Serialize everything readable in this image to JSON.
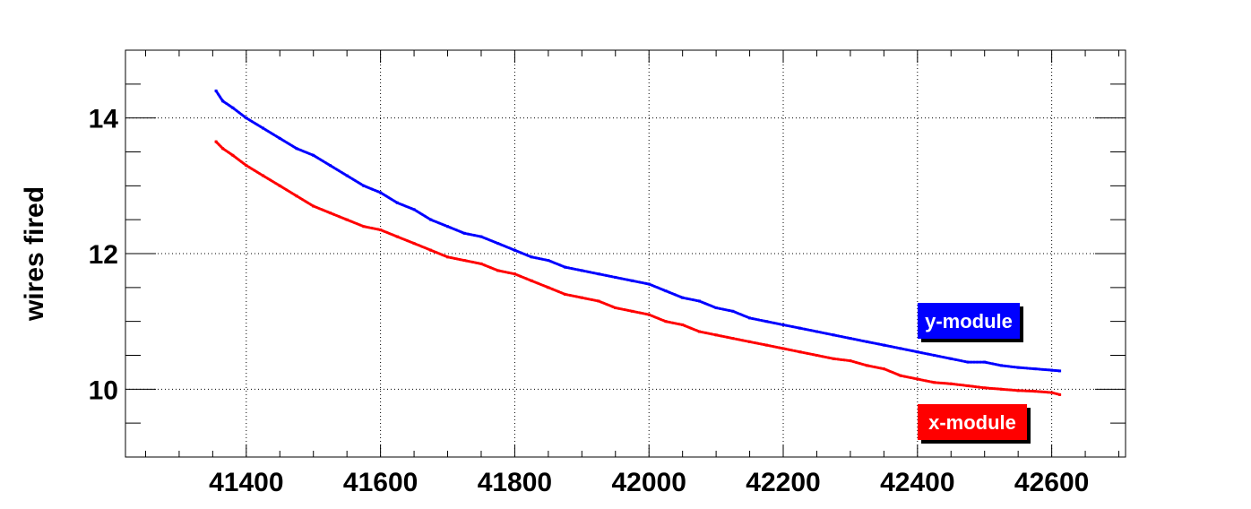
{
  "chart_data": {
    "type": "scatter",
    "title": "",
    "xlabel": "",
    "ylabel": "wires fired",
    "xlim": [
      41220,
      42710
    ],
    "ylim": [
      9.0,
      15.0
    ],
    "grid": true,
    "x_ticks": [
      "41400",
      "41600",
      "41800",
      "42000",
      "42200",
      "42400",
      "42600"
    ],
    "y_ticks": [
      "10",
      "12",
      "14"
    ],
    "legend_placement": "right",
    "series": [
      {
        "name": "y-module",
        "color": "#0000ff",
        "points": [
          [
            41355,
            14.4
          ],
          [
            41365,
            14.25
          ],
          [
            41380,
            14.15
          ],
          [
            41400,
            14.0
          ],
          [
            41425,
            13.85
          ],
          [
            41450,
            13.7
          ],
          [
            41475,
            13.55
          ],
          [
            41500,
            13.45
          ],
          [
            41525,
            13.3
          ],
          [
            41550,
            13.15
          ],
          [
            41575,
            13.0
          ],
          [
            41600,
            12.9
          ],
          [
            41625,
            12.75
          ],
          [
            41650,
            12.65
          ],
          [
            41675,
            12.5
          ],
          [
            41700,
            12.4
          ],
          [
            41725,
            12.3
          ],
          [
            41750,
            12.25
          ],
          [
            41775,
            12.15
          ],
          [
            41800,
            12.05
          ],
          [
            41825,
            11.95
          ],
          [
            41850,
            11.9
          ],
          [
            41875,
            11.8
          ],
          [
            41900,
            11.75
          ],
          [
            41925,
            11.7
          ],
          [
            41950,
            11.65
          ],
          [
            41975,
            11.6
          ],
          [
            42000,
            11.55
          ],
          [
            42025,
            11.45
          ],
          [
            42050,
            11.35
          ],
          [
            42075,
            11.3
          ],
          [
            42100,
            11.2
          ],
          [
            42125,
            11.15
          ],
          [
            42150,
            11.05
          ],
          [
            42175,
            11.0
          ],
          [
            42200,
            10.95
          ],
          [
            42225,
            10.9
          ],
          [
            42250,
            10.85
          ],
          [
            42275,
            10.8
          ],
          [
            42300,
            10.75
          ],
          [
            42325,
            10.7
          ],
          [
            42350,
            10.65
          ],
          [
            42375,
            10.6
          ],
          [
            42400,
            10.55
          ],
          [
            42425,
            10.5
          ],
          [
            42450,
            10.45
          ],
          [
            42475,
            10.4
          ],
          [
            42500,
            10.4
          ],
          [
            42525,
            10.35
          ],
          [
            42550,
            10.32
          ],
          [
            42575,
            10.3
          ],
          [
            42600,
            10.28
          ],
          [
            42612,
            10.27
          ]
        ]
      },
      {
        "name": "x-module",
        "color": "#ff0000",
        "points": [
          [
            41355,
            13.65
          ],
          [
            41365,
            13.55
          ],
          [
            41380,
            13.45
          ],
          [
            41400,
            13.3
          ],
          [
            41425,
            13.15
          ],
          [
            41450,
            13.0
          ],
          [
            41475,
            12.85
          ],
          [
            41500,
            12.7
          ],
          [
            41525,
            12.6
          ],
          [
            41550,
            12.5
          ],
          [
            41575,
            12.4
          ],
          [
            41600,
            12.35
          ],
          [
            41625,
            12.25
          ],
          [
            41650,
            12.15
          ],
          [
            41675,
            12.05
          ],
          [
            41700,
            11.95
          ],
          [
            41725,
            11.9
          ],
          [
            41750,
            11.85
          ],
          [
            41775,
            11.75
          ],
          [
            41800,
            11.7
          ],
          [
            41825,
            11.6
          ],
          [
            41850,
            11.5
          ],
          [
            41875,
            11.4
          ],
          [
            41900,
            11.35
          ],
          [
            41925,
            11.3
          ],
          [
            41950,
            11.2
          ],
          [
            41975,
            11.15
          ],
          [
            42000,
            11.1
          ],
          [
            42025,
            11.0
          ],
          [
            42050,
            10.95
          ],
          [
            42075,
            10.85
          ],
          [
            42100,
            10.8
          ],
          [
            42125,
            10.75
          ],
          [
            42150,
            10.7
          ],
          [
            42175,
            10.65
          ],
          [
            42200,
            10.6
          ],
          [
            42225,
            10.55
          ],
          [
            42250,
            10.5
          ],
          [
            42275,
            10.45
          ],
          [
            42300,
            10.42
          ],
          [
            42325,
            10.35
          ],
          [
            42350,
            10.3
          ],
          [
            42375,
            10.2
          ],
          [
            42400,
            10.15
          ],
          [
            42425,
            10.1
          ],
          [
            42450,
            10.08
          ],
          [
            42475,
            10.05
          ],
          [
            42500,
            10.02
          ],
          [
            42525,
            10.0
          ],
          [
            42550,
            9.98
          ],
          [
            42575,
            9.97
          ],
          [
            42600,
            9.95
          ],
          [
            42612,
            9.92
          ]
        ]
      }
    ]
  }
}
